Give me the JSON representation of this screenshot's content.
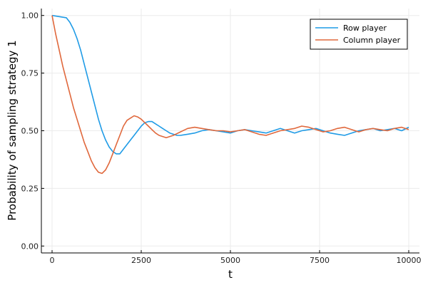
{
  "chart_data": {
    "type": "line",
    "xlabel": "t",
    "ylabel": "Probability of sampling strategy 1",
    "xlim": [
      -300,
      10300
    ],
    "ylim": [
      -0.03,
      1.03
    ],
    "xticks": [
      0,
      2500,
      5000,
      7500,
      10000
    ],
    "xtick_labels": [
      "0",
      "2500",
      "5000",
      "7500",
      "10000"
    ],
    "yticks": [
      0.0,
      0.25,
      0.5,
      0.75,
      1.0
    ],
    "ytick_labels": [
      "0.00",
      "0.25",
      "0.50",
      "0.75",
      "1.00"
    ],
    "grid": true,
    "legend_position": "top-right",
    "series": [
      {
        "name": "Row player",
        "color": "#1f9be6",
        "x": [
          0,
          200,
          400,
          500,
          600,
          700,
          800,
          900,
          1000,
          1100,
          1200,
          1300,
          1400,
          1500,
          1600,
          1700,
          1800,
          1900,
          2000,
          2100,
          2200,
          2300,
          2400,
          2500,
          2600,
          2700,
          2800,
          2900,
          3000,
          3100,
          3200,
          3300,
          3400,
          3500,
          3600,
          3800,
          4000,
          4200,
          4400,
          4600,
          4800,
          5000,
          5200,
          5400,
          5600,
          5800,
          6000,
          6200,
          6400,
          6600,
          6800,
          7000,
          7200,
          7400,
          7600,
          7800,
          8000,
          8200,
          8400,
          8600,
          8800,
          9000,
          9200,
          9400,
          9600,
          9800,
          10000
        ],
        "values": [
          1.0,
          0.995,
          0.99,
          0.97,
          0.94,
          0.9,
          0.85,
          0.79,
          0.73,
          0.67,
          0.61,
          0.55,
          0.5,
          0.46,
          0.43,
          0.41,
          0.4,
          0.4,
          0.42,
          0.44,
          0.46,
          0.48,
          0.5,
          0.52,
          0.535,
          0.54,
          0.54,
          0.53,
          0.52,
          0.51,
          0.5,
          0.49,
          0.485,
          0.48,
          0.48,
          0.485,
          0.49,
          0.5,
          0.505,
          0.5,
          0.495,
          0.49,
          0.5,
          0.505,
          0.5,
          0.495,
          0.49,
          0.5,
          0.51,
          0.5,
          0.49,
          0.5,
          0.505,
          0.51,
          0.5,
          0.49,
          0.485,
          0.48,
          0.49,
          0.5,
          0.505,
          0.51,
          0.5,
          0.505,
          0.51,
          0.5,
          0.515
        ]
      },
      {
        "name": "Column player",
        "color": "#e0683c",
        "x": [
          0,
          100,
          200,
          300,
          400,
          500,
          600,
          700,
          800,
          900,
          1000,
          1100,
          1200,
          1300,
          1400,
          1500,
          1600,
          1700,
          1800,
          1900,
          2000,
          2100,
          2200,
          2300,
          2400,
          2500,
          2600,
          2700,
          2800,
          2900,
          3000,
          3100,
          3200,
          3400,
          3600,
          3800,
          4000,
          4200,
          4400,
          4600,
          4800,
          5000,
          5200,
          5400,
          5600,
          5800,
          6000,
          6200,
          6400,
          6600,
          6800,
          7000,
          7200,
          7400,
          7600,
          7800,
          8000,
          8200,
          8400,
          8600,
          8800,
          9000,
          9200,
          9400,
          9600,
          9800,
          10000
        ],
        "values": [
          1.0,
          0.92,
          0.85,
          0.78,
          0.72,
          0.66,
          0.6,
          0.55,
          0.5,
          0.45,
          0.41,
          0.37,
          0.34,
          0.32,
          0.315,
          0.33,
          0.36,
          0.4,
          0.44,
          0.48,
          0.52,
          0.545,
          0.555,
          0.565,
          0.56,
          0.55,
          0.535,
          0.52,
          0.505,
          0.49,
          0.48,
          0.475,
          0.47,
          0.48,
          0.495,
          0.51,
          0.515,
          0.51,
          0.505,
          0.5,
          0.5,
          0.495,
          0.5,
          0.505,
          0.495,
          0.485,
          0.48,
          0.49,
          0.5,
          0.505,
          0.51,
          0.52,
          0.515,
          0.505,
          0.495,
          0.5,
          0.51,
          0.515,
          0.505,
          0.495,
          0.505,
          0.51,
          0.505,
          0.5,
          0.51,
          0.515,
          0.505
        ]
      }
    ]
  }
}
